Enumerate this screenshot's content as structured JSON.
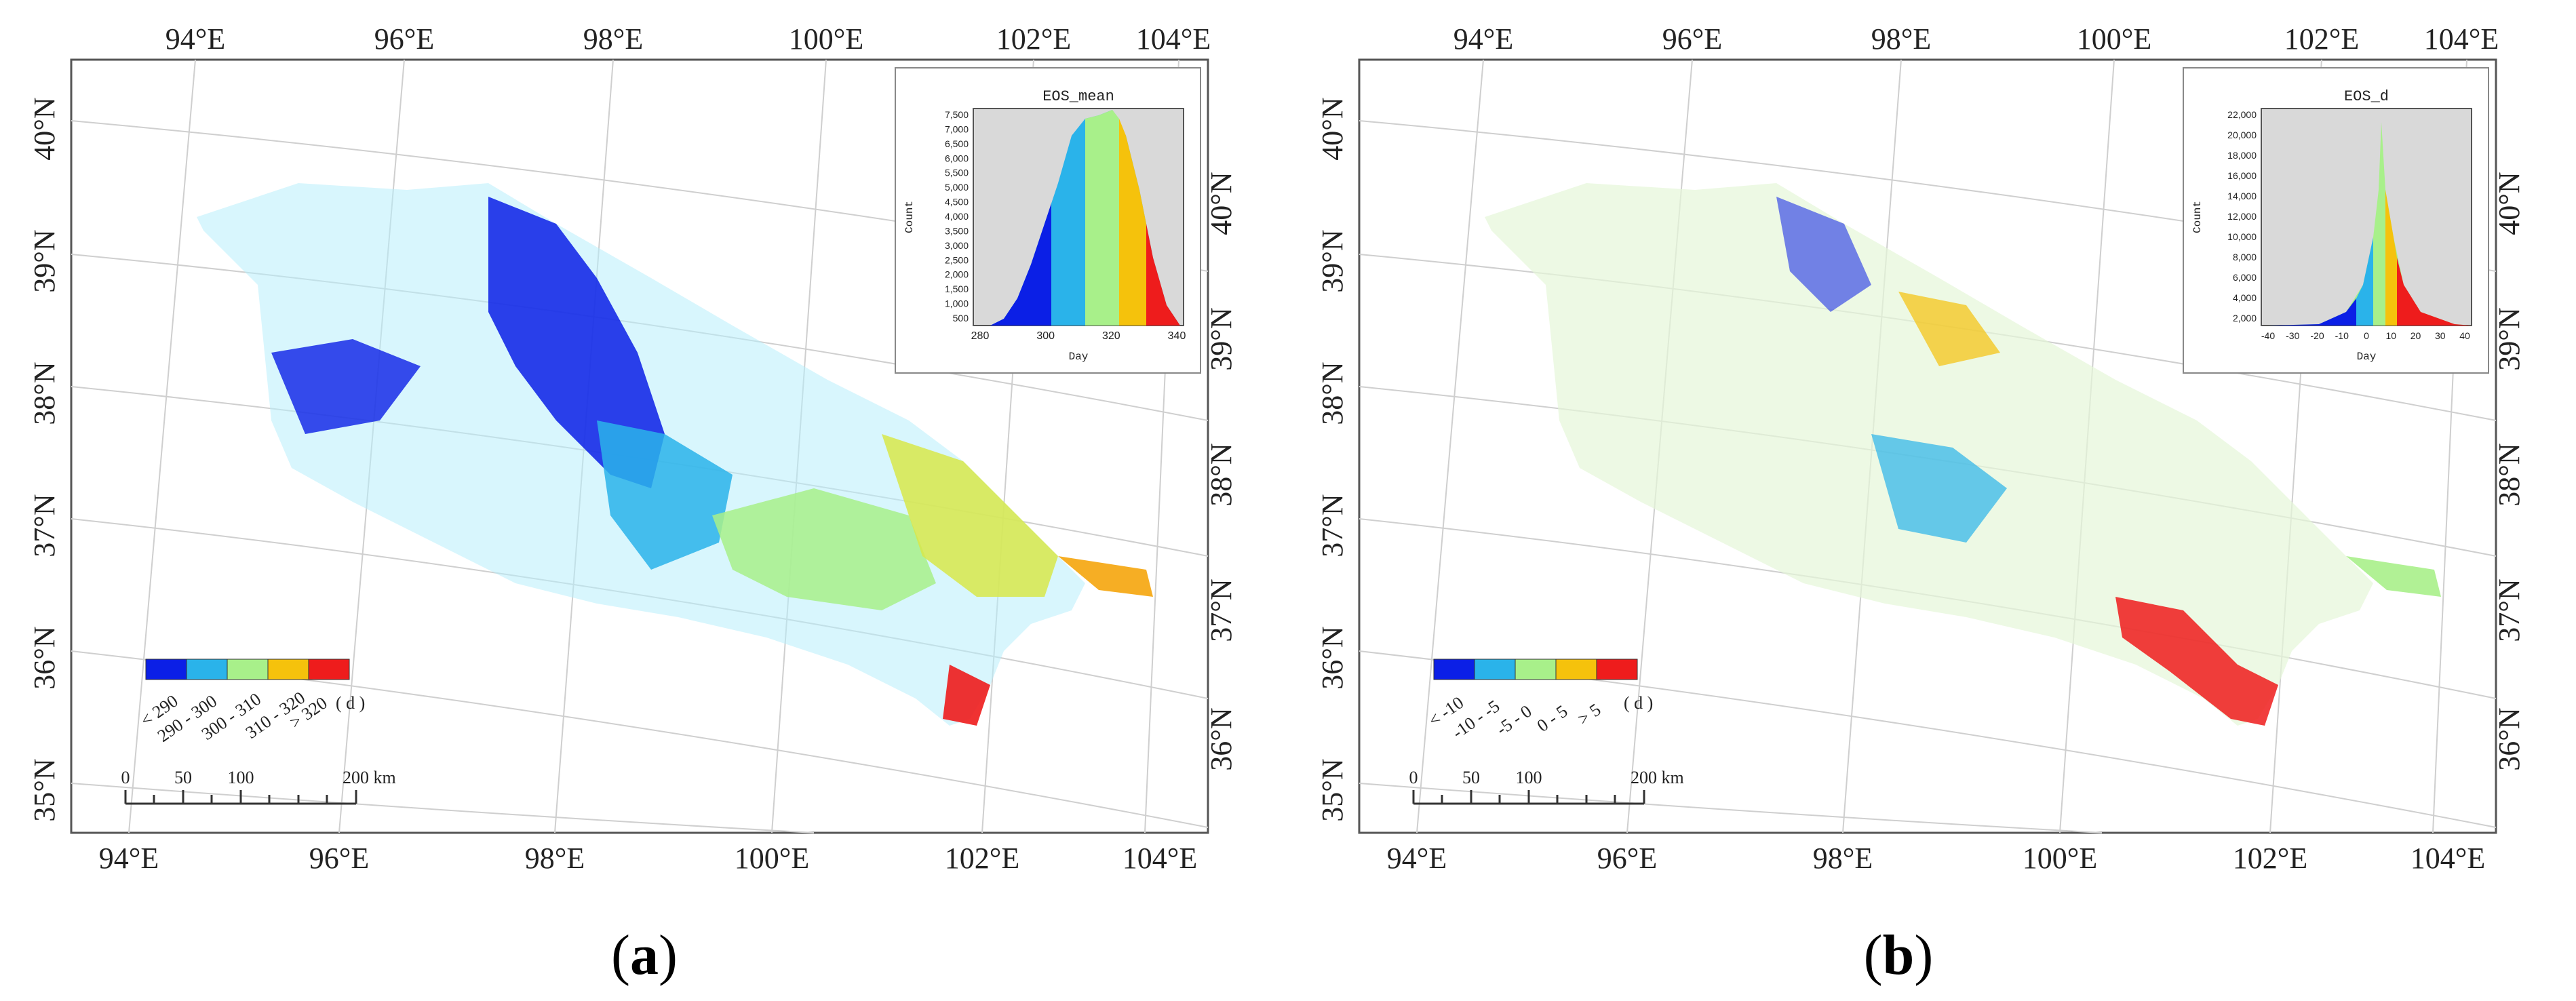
{
  "panels": [
    {
      "caption_open": "(",
      "caption_letter": "a",
      "caption_close": ")",
      "top_lon_labels": [
        "94°E",
        "96°E",
        "98°E",
        "100°E",
        "102°E",
        "104°E"
      ],
      "bottom_lon_labels": [
        "94°E",
        "96°E",
        "98°E",
        "100°E",
        "102°E",
        "104°E"
      ],
      "left_lat_labels": [
        "40°N",
        "39°N",
        "38°N",
        "37°N",
        "36°N",
        "35°N"
      ],
      "right_lat_labels": [
        "40°N",
        "39°N",
        "38°N",
        "37°N",
        "36°N"
      ],
      "legend": {
        "colors": [
          "#0b1fe6",
          "#2ab3ea",
          "#a8f08a",
          "#f5c20c",
          "#ee1c1c"
        ],
        "labels": [
          "< 290",
          "290 - 300",
          "300 - 310",
          "310 - 320",
          "> 320"
        ],
        "unit": "( d )"
      },
      "scale_bar": {
        "ticks": [
          "0",
          "50",
          "100"
        ],
        "end_label": "200 km"
      },
      "histogram": {
        "title": "EOS_mean",
        "ylabel": "Count",
        "xlabel": "Day",
        "x_ticks": [
          "280",
          "300",
          "320",
          "340"
        ],
        "y_ticks": [
          "500",
          "1,000",
          "1,500",
          "2,000",
          "2,500",
          "3,000",
          "3,500",
          "4,000",
          "4,500",
          "5,000",
          "5,500",
          "6,000",
          "6,500",
          "7,000",
          "7,500"
        ]
      }
    },
    {
      "caption_open": "(",
      "caption_letter": "b",
      "caption_close": ")",
      "top_lon_labels": [
        "94°E",
        "96°E",
        "98°E",
        "100°E",
        "102°E",
        "104°E"
      ],
      "bottom_lon_labels": [
        "94°E",
        "96°E",
        "98°E",
        "100°E",
        "102°E",
        "104°E"
      ],
      "left_lat_labels": [
        "40°N",
        "39°N",
        "38°N",
        "37°N",
        "36°N",
        "35°N"
      ],
      "right_lat_labels": [
        "40°N",
        "39°N",
        "38°N",
        "37°N",
        "36°N"
      ],
      "legend": {
        "colors": [
          "#0b1fe6",
          "#2ab3ea",
          "#a8f08a",
          "#f5c20c",
          "#ee1c1c"
        ],
        "labels": [
          "< -10",
          "-10 - -5",
          "-5 - 0",
          "0 - 5",
          "> 5"
        ],
        "unit": "( d )"
      },
      "scale_bar": {
        "ticks": [
          "0",
          "50",
          "100"
        ],
        "end_label": "200 km"
      },
      "histogram": {
        "title": "EOS_d",
        "ylabel": "Count",
        "xlabel": "Day",
        "x_ticks": [
          "-40",
          "-30",
          "-20",
          "-10",
          "0",
          "10",
          "20",
          "30",
          "40"
        ],
        "y_ticks": [
          "2,000",
          "4,000",
          "6,000",
          "8,000",
          "10,000",
          "12,000",
          "14,000",
          "16,000",
          "18,000",
          "20,000",
          "22,000"
        ]
      }
    }
  ]
}
